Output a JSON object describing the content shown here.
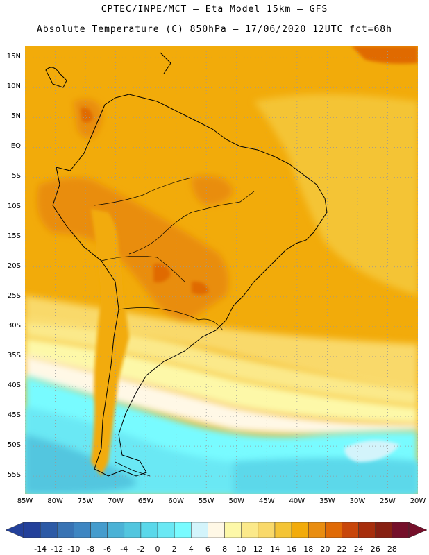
{
  "header": {
    "line1": "CPTEC/INPE/MCT –  Eta Model 15km – GFS",
    "line2": "Absolute Temperature (C) 850hPa – 17/06/2020 12UTC fct=68h"
  },
  "map": {
    "lon_range": [
      -85,
      -20
    ],
    "lat_range": [
      -58,
      17
    ],
    "lat_labels": [
      "15N",
      "10N",
      "5N",
      "EQ",
      "5S",
      "10S",
      "15S",
      "20S",
      "25S",
      "30S",
      "35S",
      "40S",
      "45S",
      "50S",
      "55S"
    ],
    "lat_values": [
      15,
      10,
      5,
      0,
      -5,
      -10,
      -15,
      -20,
      -25,
      -30,
      -35,
      -40,
      -45,
      -50,
      -55
    ],
    "lon_labels": [
      "85W",
      "80W",
      "75W",
      "70W",
      "65W",
      "60W",
      "55W",
      "50W",
      "45W",
      "40W",
      "35W",
      "30W",
      "25W",
      "20W"
    ],
    "lon_values": [
      -85,
      -80,
      -75,
      -70,
      -65,
      -60,
      -55,
      -50,
      -45,
      -40,
      -35,
      -30,
      -25,
      -20
    ],
    "gridlines": "dotted"
  },
  "colorbar": {
    "labels": [
      "-14",
      "-12",
      "-10",
      "-8",
      "-6",
      "-4",
      "-2",
      "0",
      "2",
      "4",
      "6",
      "8",
      "10",
      "12",
      "14",
      "16",
      "18",
      "20",
      "22",
      "24",
      "26",
      "28"
    ],
    "colors": [
      "#23409a",
      "#2c5aa6",
      "#3873b4",
      "#3e86c2",
      "#459ccd",
      "#4bb2d6",
      "#52c6df",
      "#5bd8ea",
      "#6ae8f4",
      "#78fbff",
      "#d3f4fb",
      "#fff8e6",
      "#fdf8a8",
      "#fbe98a",
      "#f9d96a",
      "#f4c436",
      "#f2ab0a",
      "#e98d10",
      "#e06a06",
      "#c8460a",
      "#a72e0c",
      "#872012",
      "#750f2a"
    ],
    "units": "C"
  }
}
